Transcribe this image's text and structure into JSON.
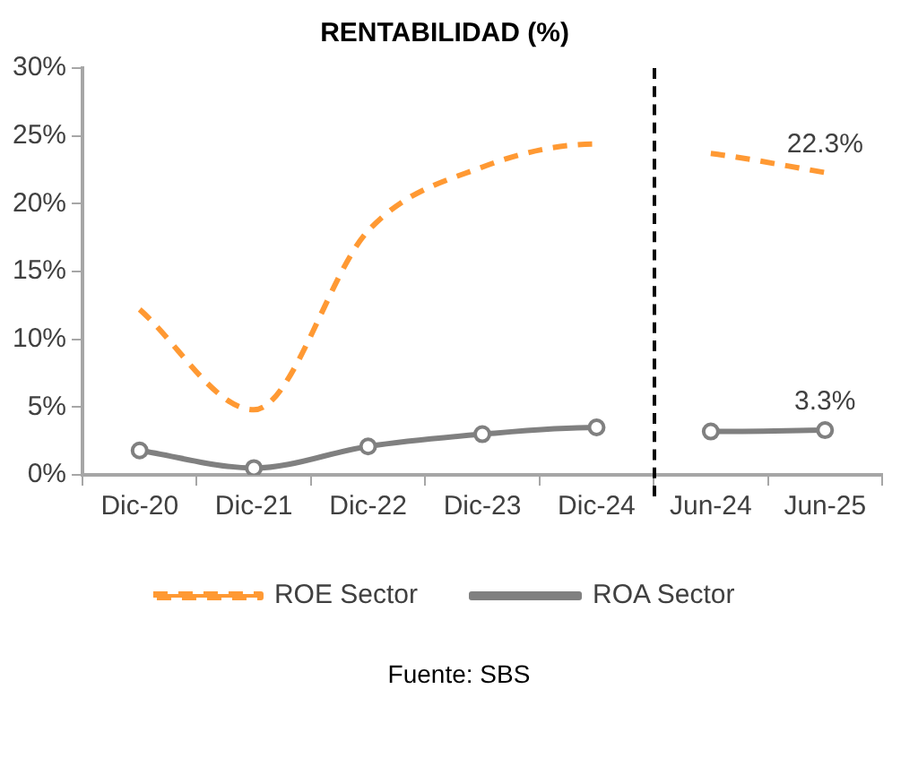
{
  "chart_data": {
    "type": "line",
    "title": "RENTABILIDAD (%)",
    "categories": [
      "Dic-20",
      "Dic-21",
      "Dic-22",
      "Dic-23",
      "Dic-24",
      "Jun-24",
      "Jun-25"
    ],
    "series": [
      {
        "name": "ROE Sector",
        "color": "#ff9933",
        "line_style": "dashed",
        "marker": "none",
        "values": [
          12.2,
          4.8,
          18,
          22.7,
          24.4,
          23.7,
          22.3
        ],
        "value_labels": [
          null,
          null,
          null,
          null,
          null,
          null,
          "22.3%"
        ]
      },
      {
        "name": "ROA Sector",
        "color": "#808080",
        "line_style": "solid",
        "marker": "circle",
        "values": [
          1.8,
          0.5,
          2.1,
          3.0,
          3.5,
          3.2,
          3.3
        ],
        "value_labels": [
          null,
          null,
          null,
          null,
          null,
          null,
          "3.3%"
        ]
      }
    ],
    "ylim": [
      0,
      30
    ],
    "yticks": [
      {
        "value": 0,
        "label": "0%"
      },
      {
        "value": 5,
        "label": "5%"
      },
      {
        "value": 10,
        "label": "10%"
      },
      {
        "value": 15,
        "label": "15%"
      },
      {
        "value": 20,
        "label": "20%"
      },
      {
        "value": 25,
        "label": "25%"
      },
      {
        "value": 30,
        "label": "30%"
      }
    ],
    "grid": false,
    "legend": "bottom",
    "annotations": [
      "Fuente: SBS"
    ]
  }
}
